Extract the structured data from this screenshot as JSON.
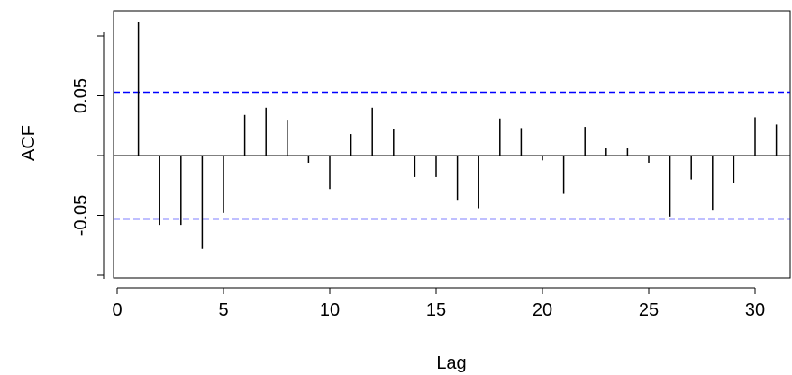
{
  "chart_data": {
    "type": "bar",
    "title": "",
    "xlabel": "Lag",
    "ylabel": "ACF",
    "xlim": [
      0,
      31
    ],
    "ylim": [
      -0.1,
      0.11
    ],
    "x_ticks": [
      "0",
      "5",
      "10",
      "15",
      "20",
      "25",
      "30"
    ],
    "y_ticks": [
      "-0.05",
      "0.05"
    ],
    "confidence_bound": 0.053,
    "confidence_color": "#0000ff",
    "bar_color": "#000000",
    "grid": false,
    "series": [
      {
        "x": [
          1,
          2,
          3,
          4,
          5,
          6,
          7,
          8,
          9,
          10,
          11,
          12,
          13,
          14,
          15,
          16,
          17,
          18,
          19,
          20,
          21,
          22,
          23,
          24,
          25,
          26,
          27,
          28,
          29,
          30,
          31
        ],
        "values": [
          0.112,
          -0.058,
          -0.058,
          -0.078,
          -0.048,
          0.034,
          0.04,
          0.03,
          -0.006,
          -0.028,
          0.018,
          0.04,
          0.022,
          -0.018,
          -0.018,
          -0.037,
          -0.044,
          0.031,
          0.023,
          -0.004,
          -0.032,
          0.024,
          0.006,
          0.006,
          -0.006,
          -0.051,
          -0.02,
          -0.046,
          -0.023,
          0.032,
          0.026
        ]
      }
    ]
  }
}
